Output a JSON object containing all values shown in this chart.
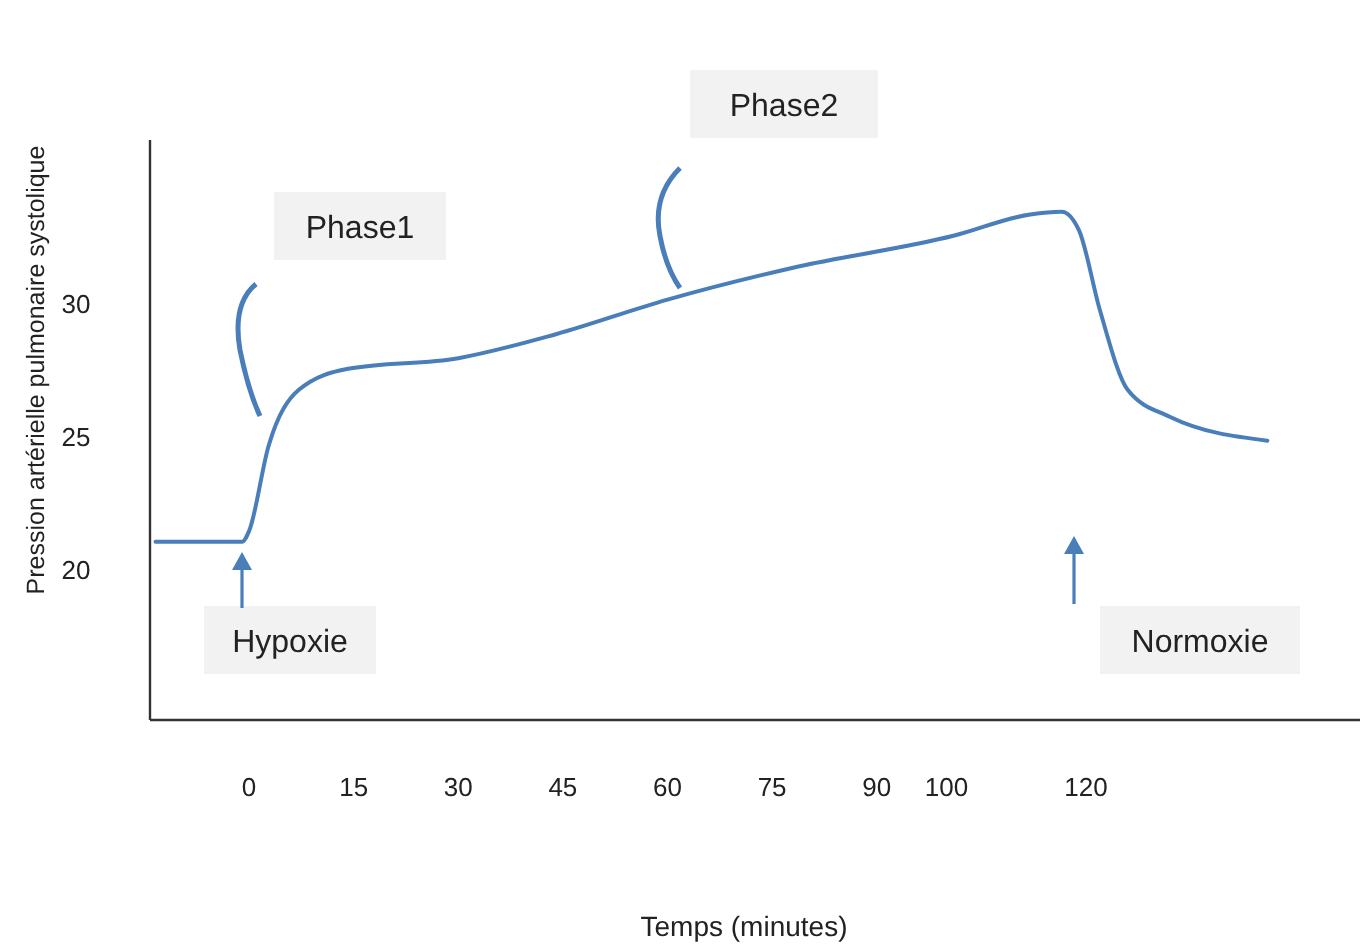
{
  "chart_data": {
    "type": "line",
    "xlabel": "Temps (minutes)",
    "ylabel": "Pression artérielle pulmonaire systolique",
    "x": [
      -13.4,
      -1,
      0,
      2.8,
      7.1,
      14.2,
      30,
      44,
      60,
      78,
      101,
      112,
      116.5,
      119,
      122,
      126,
      132,
      146
    ],
    "series": [
      {
        "color": "#4a7ebb",
        "values": [
          21.1,
          21.1,
          21.5,
          24.7,
          26.8,
          27.6,
          28.0,
          28.9,
          30.2,
          31.4,
          32.6,
          33.4,
          33.5,
          32.8,
          29.8,
          26.8,
          25.8,
          24.9
        ]
      }
    ],
    "xlim": [
      -14.2,
      159
    ],
    "ylim": [
      14.4,
      36.2
    ],
    "xticks": [
      0,
      15,
      30,
      45,
      60,
      75,
      90,
      100,
      120
    ],
    "yticks": [
      20,
      25,
      30
    ],
    "annotations": [
      "Phase1",
      "Phase2",
      "Hypoxie",
      "Normoxie"
    ],
    "marker": "none",
    "line_style": "solid"
  }
}
